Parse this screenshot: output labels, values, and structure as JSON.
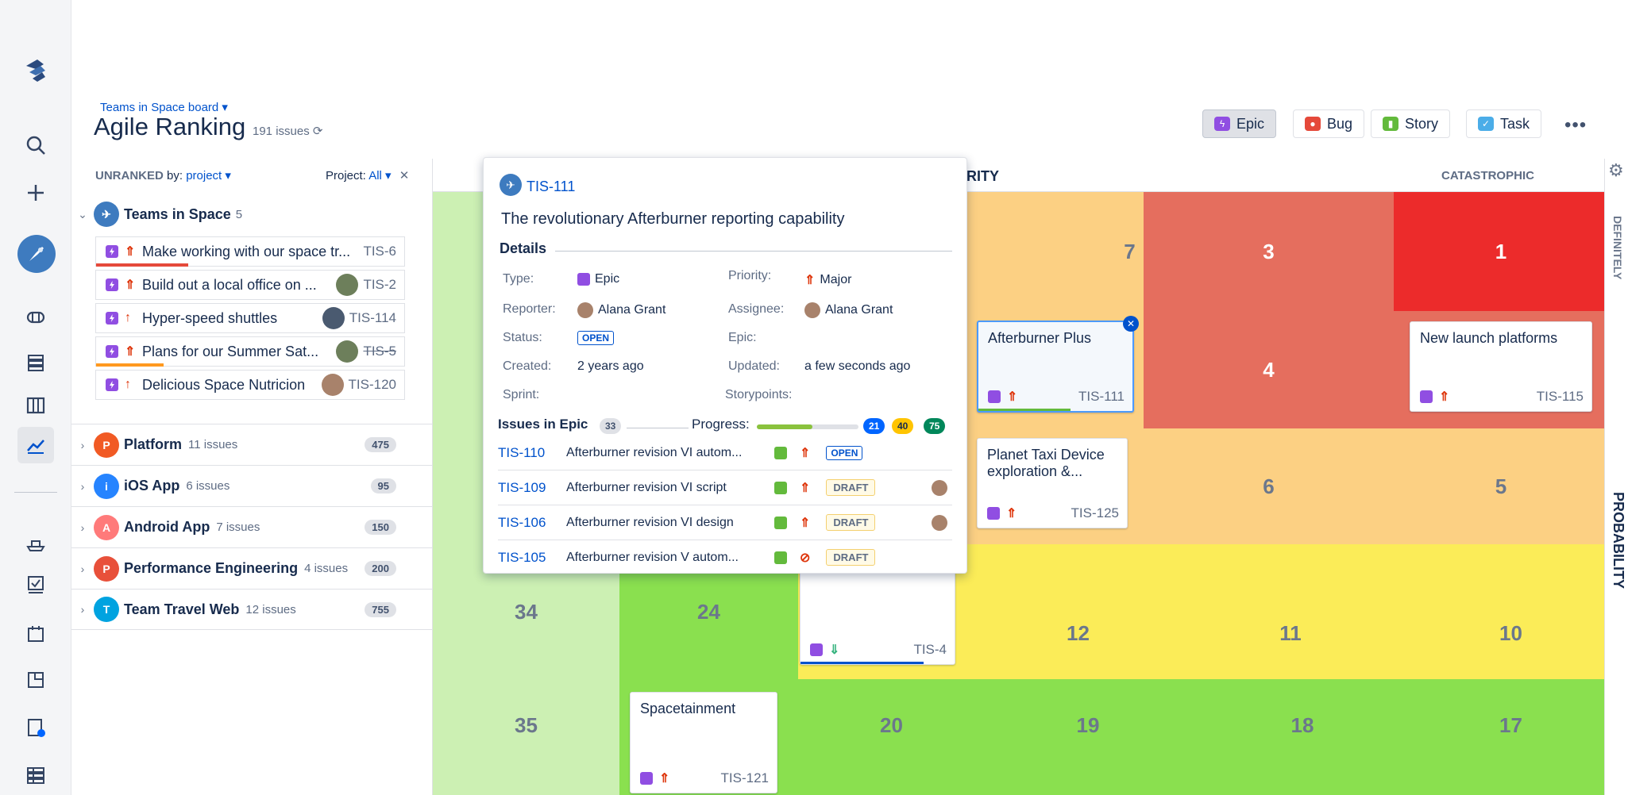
{
  "header": {
    "breadcrumb": "Teams in Space board ▾",
    "title": "Agile Ranking",
    "issue_count": "191 issues"
  },
  "filters": [
    {
      "label": "Epic",
      "icon": "epic-icon",
      "color": "#904ee2",
      "active": true
    },
    {
      "label": "Bug",
      "icon": "bug-icon",
      "color": "#e5493a"
    },
    {
      "label": "Story",
      "icon": "story-icon",
      "color": "#63ba3c"
    },
    {
      "label": "Task",
      "icon": "task-icon",
      "color": "#4bade8"
    }
  ],
  "left_panel": {
    "title": "UNRANKED",
    "by_label": "by:",
    "by_value": "project ▾",
    "project_label": "Project:",
    "project_value": "All ▾",
    "close": "✕",
    "expanded_group": {
      "name": "Teams in Space",
      "count": "5"
    },
    "issues": [
      {
        "title": "Make working with our space tr...",
        "key": "TIS-6",
        "priority": "⇑",
        "bar_color": "#e5493a",
        "bar_width": "30%"
      },
      {
        "title": "Build out a local office on ...",
        "key": "TIS-2",
        "priority": "⇑"
      },
      {
        "title": "Hyper-speed shuttles",
        "key": "TIS-114",
        "priority": "↑"
      },
      {
        "title": "Plans for our Summer Sat...",
        "key": "TIS-5",
        "priority": "⇑",
        "bar_color": "#ff991f",
        "bar_width": "22%"
      },
      {
        "title": "Delicious Space Nutricion",
        "key": "TIS-120",
        "priority": "↑"
      }
    ],
    "groups": [
      {
        "name": "Platform",
        "count": "11 issues",
        "badge": "475",
        "color": "#f15a24",
        "initial": "P"
      },
      {
        "name": "iOS App",
        "count": "6 issues",
        "badge": "95",
        "color": "#2684ff",
        "initial": "i"
      },
      {
        "name": "Android App",
        "count": "7 issues",
        "badge": "150",
        "color": "#ff7a7a",
        "initial": "A"
      },
      {
        "name": "Performance Engineering",
        "count": "4 issues",
        "badge": "200",
        "color": "#e8503a",
        "initial": "P"
      },
      {
        "name": "Team Travel Web",
        "count": "12 issues",
        "badge": "755",
        "color": "#00a3e0",
        "initial": "T"
      }
    ]
  },
  "board": {
    "col_header_partial": "RITY",
    "col_header_right": "CATASTROPHIC",
    "row_top": "DEFINITELY",
    "axis_y": "PROBABILITY",
    "cells": [
      {
        "n": "7",
        "c": "#fcd083"
      },
      {
        "n": "3",
        "c": "#e56e5e"
      },
      {
        "n": "1",
        "c": "#ec2b2b"
      },
      {
        "n": "4",
        "c": "#e56e5e"
      },
      {
        "n": "6",
        "c": "#fcd083"
      },
      {
        "n": "5",
        "c": "#fcd083"
      },
      {
        "n": "34",
        "c": "#ccf0b3"
      },
      {
        "n": "24",
        "c": "#8ae04f"
      },
      {
        "n": "12",
        "c": "#fbec58"
      },
      {
        "n": "11",
        "c": "#fbec58"
      },
      {
        "n": "10",
        "c": "#fbec58"
      },
      {
        "n": "35",
        "c": "#ccf0b3"
      },
      {
        "n": "20",
        "c": "#8ae04f"
      },
      {
        "n": "19",
        "c": "#8ae04f"
      },
      {
        "n": "18",
        "c": "#8ae04f"
      },
      {
        "n": "17",
        "c": "#8ae04f"
      }
    ],
    "cards": [
      {
        "title": "Afterburner Plus",
        "key": "TIS-111",
        "priority": "⇑"
      },
      {
        "title": "New launch platforms",
        "key": "TIS-115",
        "priority": "⇑"
      },
      {
        "title": "Planet Taxi Device exploration &...",
        "key": "TIS-125",
        "priority": "⇑"
      },
      {
        "title": "",
        "key": "TIS-4",
        "priority": "⇓"
      },
      {
        "title": "Spacetainment",
        "key": "TIS-121",
        "priority": "⇑"
      }
    ]
  },
  "popup": {
    "key": "TIS-111",
    "title": "The revolutionary Afterburner reporting capability",
    "details_heading": "Details",
    "fields": {
      "type_label": "Type:",
      "type_value": "Epic",
      "priority_label": "Priority:",
      "priority_value": "Major",
      "reporter_label": "Reporter:",
      "reporter_value": "Alana Grant",
      "assignee_label": "Assignee:",
      "assignee_value": "Alana Grant",
      "status_label": "Status:",
      "status_value": "OPEN",
      "epic_label": "Epic:",
      "created_label": "Created:",
      "created_value": "2 years ago",
      "updated_label": "Updated:",
      "updated_value": "a few seconds ago",
      "sprint_label": "Sprint:",
      "storypoints_label": "Storypoints:"
    },
    "issues_heading": "Issues in Epic",
    "issues_count": "33",
    "progress_label": "Progress:",
    "progress": {
      "todo": "21",
      "inprogress": "40",
      "done": "75"
    },
    "subissues": [
      {
        "key": "TIS-110",
        "title": "Afterburner revision VI autom...",
        "status": "OPEN"
      },
      {
        "key": "TIS-109",
        "title": "Afterburner revision VI script",
        "status": "DRAFT"
      },
      {
        "key": "TIS-106",
        "title": "Afterburner revision VI design",
        "status": "DRAFT"
      },
      {
        "key": "TIS-105",
        "title": "Afterburner revision V autom...",
        "status": "DRAFT"
      }
    ]
  }
}
